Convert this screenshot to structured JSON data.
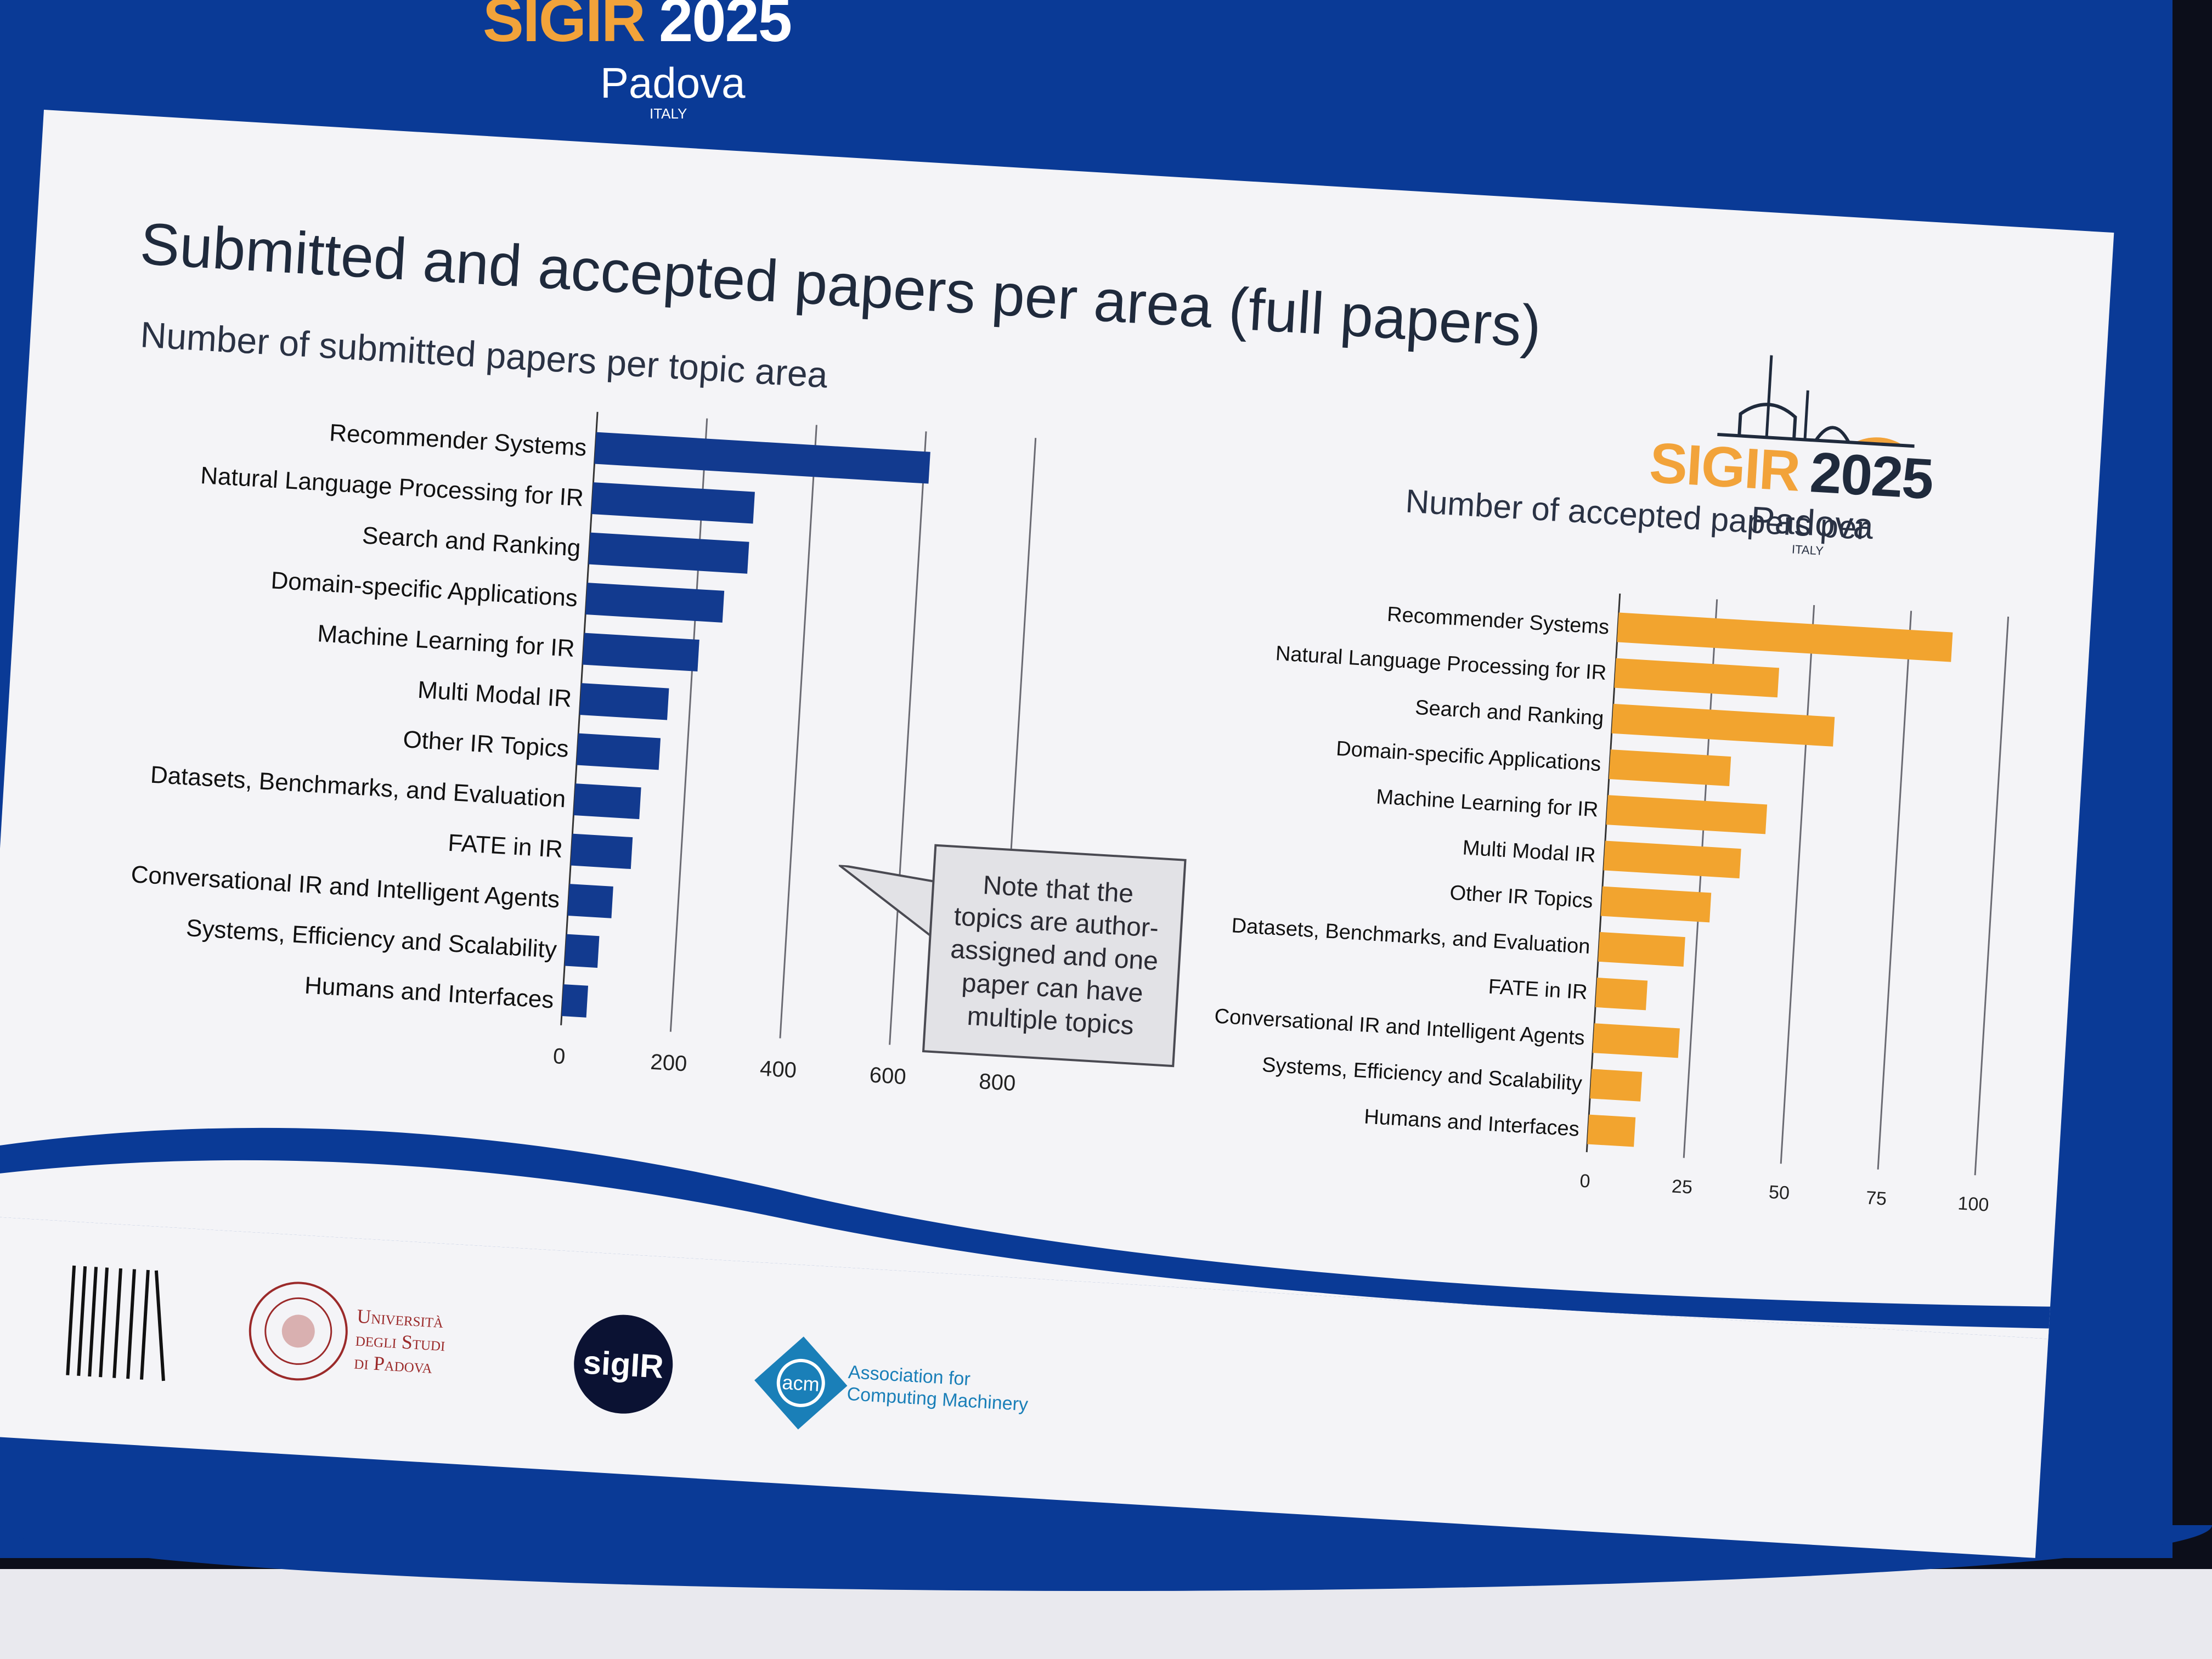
{
  "header": {
    "sigir": "SIGIR",
    "year": "2025",
    "city": "Padova",
    "country": "ITALY"
  },
  "slide": {
    "title": "Submitted and accepted papers per area (full papers)",
    "logo": {
      "sigir": "SIGIR",
      "year": "2025",
      "city": "Padova",
      "country": "ITALY"
    },
    "note": "Note that the topics are author-assigned and one paper can have multiple topics",
    "footer": {
      "unipd_line1": "Università",
      "unipd_line2": "degli Studi",
      "unipd_line3": "di Padova",
      "sigir_badge": "sigIR",
      "acm_badge": "acm",
      "acm_line1": "Association for",
      "acm_line2": "Computing Machinery"
    }
  },
  "colors": {
    "screen_blue": "#0a3a96",
    "submitted_bar": "#123a8f",
    "accepted_bar": "#f2a42f",
    "accent_orange": "#f2a33a"
  },
  "chart_data": [
    {
      "type": "bar",
      "orientation": "horizontal",
      "title": "Number of submitted papers per topic area",
      "categories": [
        "Recommender Systems",
        "Natural Language Processing for IR",
        "Search and Ranking",
        "Domain-specific Applications",
        "Machine Learning for IR",
        "Multi Modal IR",
        "Other IR Topics",
        "Datasets, Benchmarks, and Evaluation",
        "FATE in IR",
        "Conversational IR and Intelligent Agents",
        "Systems, Efficiency and Scalability",
        "Humans and Interfaces"
      ],
      "values": [
        610,
        295,
        290,
        250,
        210,
        160,
        150,
        120,
        110,
        80,
        60,
        45
      ],
      "xlim": [
        0,
        900
      ],
      "xticks": [
        "0",
        "200",
        "400",
        "600",
        "800"
      ],
      "grid": true,
      "color": "#123a8f"
    },
    {
      "type": "bar",
      "orientation": "horizontal",
      "title": "Number of accepted papers per",
      "categories": [
        "Recommender Systems",
        "Natural Language Processing for IR",
        "Search and Ranking",
        "Domain-specific Applications",
        "Machine Learning for IR",
        "Multi Modal IR",
        "Other IR Topics",
        "Datasets, Benchmarks, and Evaluation",
        "FATE in IR",
        "Conversational IR and Intelligent Agents",
        "Systems, Efficiency and Scalability",
        "Humans and Interfaces"
      ],
      "values": [
        86,
        42,
        57,
        31,
        41,
        35,
        28,
        22,
        13,
        22,
        13,
        12
      ],
      "xlim": [
        0,
        110
      ],
      "xticks": [
        "0",
        "25",
        "50",
        "75",
        "100"
      ],
      "grid": true,
      "color": "#f2a42f"
    }
  ]
}
